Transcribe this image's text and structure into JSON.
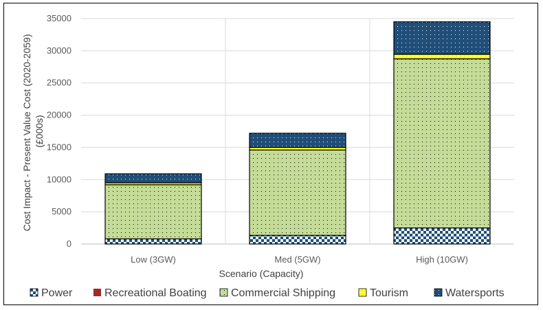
{
  "chart_data": {
    "type": "bar",
    "stacked": true,
    "categories": [
      "Low (3GW)",
      "Med (5GW)",
      "High (10GW)"
    ],
    "xlabel": "Scenario (Capacity)",
    "ylabel_lines": [
      "Cost Impact - Present Value Cost (2020-2059)",
      "(£000s)"
    ],
    "ylim": [
      0,
      35000
    ],
    "yticks": [
      0,
      5000,
      10000,
      15000,
      20000,
      25000,
      30000,
      35000
    ],
    "grid": true,
    "legend_position": "bottom",
    "series": [
      {
        "name": "Power",
        "values": [
          800,
          1350,
          2500
        ],
        "color": "#1f4e79",
        "pattern": "checker"
      },
      {
        "name": "Recreational Boating",
        "values": [
          0,
          0,
          0
        ],
        "color": "#9e2a2b",
        "pattern": "solid"
      },
      {
        "name": "Commercial Shipping",
        "values": [
          8400,
          13250,
          26250
        ],
        "color": "#c4dc98",
        "pattern": "dots"
      },
      {
        "name": "Tourism",
        "values": [
          300,
          400,
          700
        ],
        "color": "#ffff00",
        "pattern": "dashes"
      },
      {
        "name": "Watersports",
        "values": [
          1400,
          2200,
          5050
        ],
        "color": "#1f4e79",
        "pattern": "dots-white"
      }
    ]
  }
}
